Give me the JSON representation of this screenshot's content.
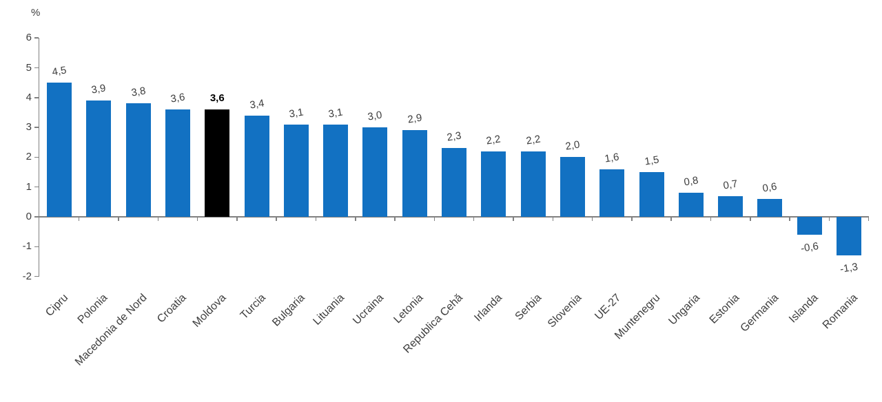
{
  "chart_data": {
    "type": "bar",
    "title": "",
    "ylabel": "%",
    "xlabel": "",
    "ylim": [
      -2,
      6
    ],
    "yticks": [
      6,
      5,
      4,
      3,
      2,
      1,
      0,
      -1,
      -2
    ],
    "ytick_labels": [
      "6",
      "5",
      "4",
      "3",
      "2",
      "1",
      "0",
      "-1",
      "-2"
    ],
    "grid": false,
    "legend": "none",
    "categories": [
      "Cipru",
      "Polonia",
      "Macedonia de Nord",
      "Croatia",
      "Moldova",
      "Turcia",
      "Bulgaria",
      "Lituania",
      "Ucraina",
      "Letonia",
      "Republica Cehă",
      "Irlanda",
      "Serbia",
      "Slovenia",
      "UE-27",
      "Muntenegru",
      "Ungaria",
      "Estonia",
      "Germania",
      "Islanda",
      "Romania"
    ],
    "values": [
      4.5,
      3.9,
      3.8,
      3.6,
      3.6,
      3.4,
      3.1,
      3.1,
      3.0,
      2.9,
      2.3,
      2.2,
      2.2,
      2.0,
      1.6,
      1.5,
      0.8,
      0.7,
      0.6,
      -0.6,
      -1.3
    ],
    "value_labels": [
      "4,5",
      "3,9",
      "3,8",
      "3,6",
      "3,6",
      "3,4",
      "3,1",
      "3,1",
      "3,0",
      "2,9",
      "2,3",
      "2,2",
      "2,2",
      "2,0",
      "1,6",
      "1,5",
      "0,8",
      "0,7",
      "0,6",
      "-0,6",
      "-1,3"
    ],
    "highlight_index": 4,
    "highlight_category": "Moldova",
    "bar_color": "#1271C2",
    "highlight_color": "#000000",
    "axis_color": "#808080",
    "text_color": "#3d3d3d"
  }
}
